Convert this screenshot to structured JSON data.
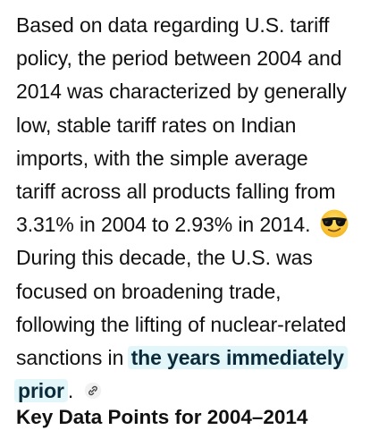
{
  "article": {
    "lines": [
      "Based on data regarding U.S. tariff",
      "policy, the period between 2004 and",
      "2014 was characterized by generally",
      "low, stable tariff rates on Indian",
      "imports, with the simple average",
      "tariff across all products falling from",
      "3.31% in 2004 to 2.93% in 2014.",
      "During this decade, the U.S. was",
      "focused on broadening trade,",
      "following the lifting of nuclear-related",
      "sanctions in "
    ],
    "emoji_icon": "smiling-face-with-sunglasses-icon",
    "citation_line1": "the years immediately",
    "citation_line2": "prior",
    "after_citation": ".",
    "link_icon": "link-icon",
    "highlight_color": "#e3f7fb"
  },
  "section": {
    "heading": "Key Data Points for 2004–2014"
  }
}
